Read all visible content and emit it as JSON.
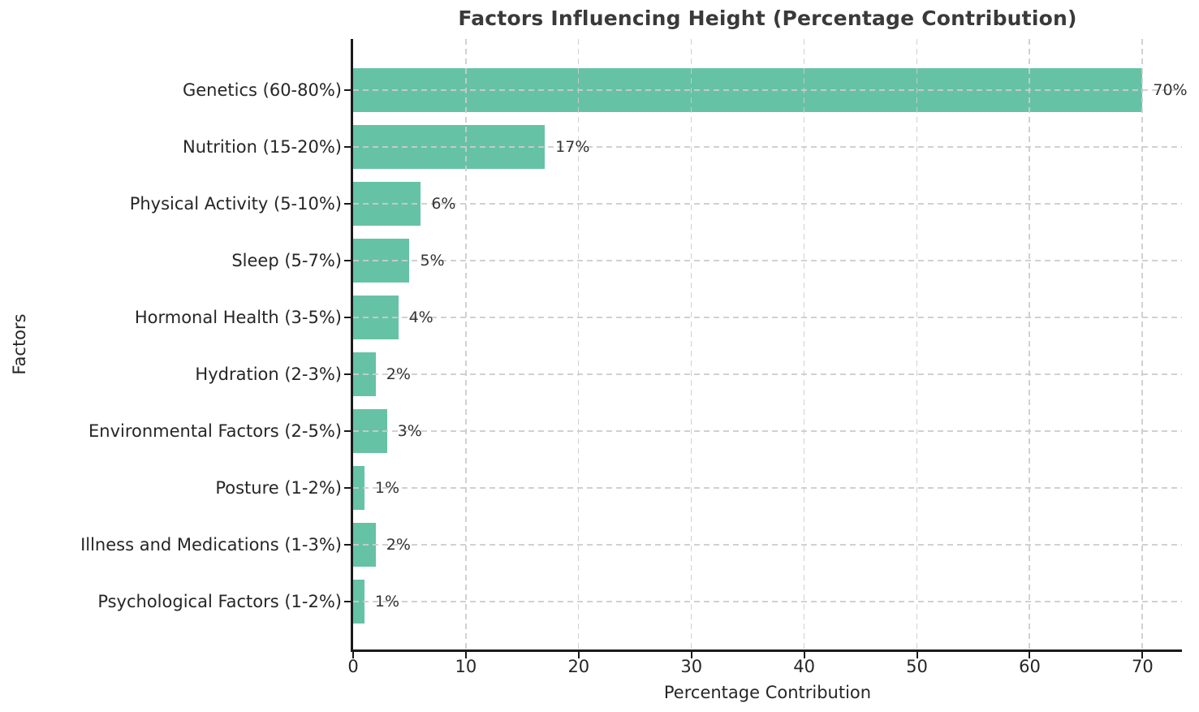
{
  "chart_data": {
    "type": "bar",
    "orientation": "horizontal",
    "title": "Factors Influencing Height (Percentage Contribution)",
    "xlabel": "Percentage Contribution",
    "ylabel": "Factors",
    "categories": [
      "Genetics (60-80%)",
      "Nutrition (15-20%)",
      "Physical Activity (5-10%)",
      "Sleep (5-7%)",
      "Hormonal Health (3-5%)",
      "Hydration (2-3%)",
      "Environmental Factors (2-5%)",
      "Posture (1-2%)",
      "Illness and Medications (1-3%)",
      "Psychological Factors (1-2%)"
    ],
    "values": [
      70,
      17,
      6,
      5,
      4,
      2,
      3,
      1,
      2,
      1
    ],
    "value_labels": [
      "70%",
      "17%",
      "6%",
      "5%",
      "4%",
      "2%",
      "3%",
      "1%",
      "2%",
      "1%"
    ],
    "x_ticks": [
      0,
      10,
      20,
      30,
      40,
      50,
      60,
      70
    ],
    "xlim": [
      0,
      73.5
    ],
    "grid": "dashed, both directions, drawn over bars",
    "legend": "none",
    "colors": {
      "bar": "#66c2a5",
      "grid": "#cccccc",
      "spine": "#1a1a1a",
      "title": "#3a3a3a",
      "text": "#262626",
      "annotation": "#333333",
      "background": "#ffffff"
    }
  }
}
